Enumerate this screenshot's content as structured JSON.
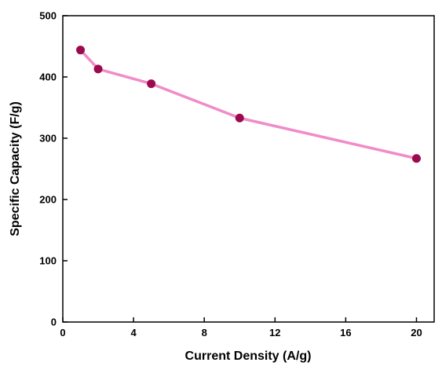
{
  "chart_data": {
    "type": "line",
    "xlabel": "Current Density (A/g)",
    "ylabel": "Specific Capacity (F/g)",
    "xlim": [
      0,
      21
    ],
    "ylim": [
      0,
      500
    ],
    "xticks": [
      0,
      4,
      8,
      12,
      16,
      20
    ],
    "yticks": [
      0,
      100,
      200,
      300,
      400,
      500
    ],
    "grid": false,
    "series": [
      {
        "x": [
          1,
          2,
          5,
          10,
          20
        ],
        "y": [
          444,
          413,
          389,
          333,
          267
        ],
        "line_color": "#f08cc8",
        "marker_color": "#9b0a4e"
      }
    ]
  }
}
